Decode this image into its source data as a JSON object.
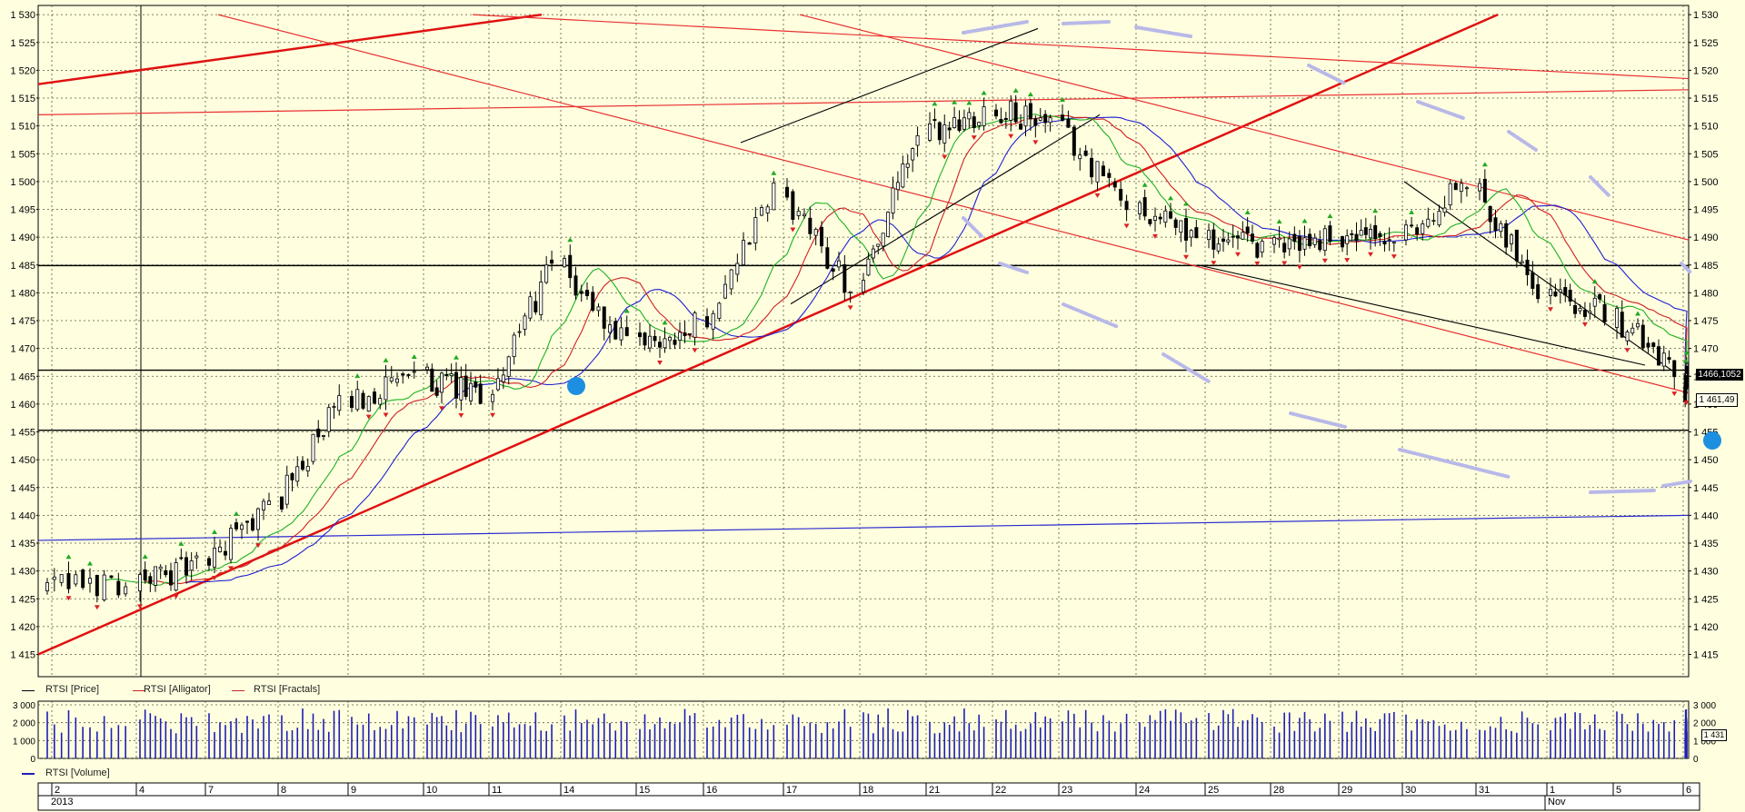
{
  "colors": {
    "background": "#ffffe0",
    "panel": "#fffff0",
    "grid": "#5a5a3a",
    "candle": "#000000",
    "alligator_jaw": "#2020d0",
    "alligator_teeth": "#d02020",
    "alligator_lips": "#20b020",
    "fractal_up": "#22aa22",
    "fractal_down": "#dd2020",
    "trend_thick": "#e01010",
    "trend_thin": "#e83030",
    "volume": "#1e1eb4",
    "sma": "#2a2ad0"
  },
  "legend_price": [
    {
      "label": "RTSI [Price]",
      "color": "#000000"
    },
    {
      "label": "RTSI [Alligator]",
      "color": "#d02020"
    },
    {
      "label": "RTSI [Fractals]",
      "color": "#d02020"
    }
  ],
  "legend_volume": [
    {
      "label": "RTSI [Volume]",
      "color": "#1e1eb4"
    }
  ],
  "price_badges": {
    "upper": "1466,1052",
    "lower": "1 461,49"
  },
  "volume_badge": "1 431",
  "timeline": {
    "day_labels": [
      "2",
      "4",
      "7",
      "8",
      "9",
      "10",
      "11",
      "14",
      "15",
      "16",
      "17",
      "18",
      "21",
      "22",
      "23",
      "24",
      "25",
      "28",
      "29",
      "30",
      "31",
      "1",
      "5",
      "6"
    ],
    "year_label": "2013",
    "month_label": "Nov"
  },
  "chart_data": [
    {
      "type": "candlestick",
      "title": "",
      "series_name": "RTSI",
      "y_axis_ticks": [
        "1 530",
        "1 525",
        "1 520",
        "1 515",
        "1 510",
        "1 505",
        "1 500",
        "1 495",
        "1 490",
        "1 485",
        "1 480",
        "1 475",
        "1 470",
        "1 465",
        "1 460",
        "1 455",
        "1 450",
        "1 445",
        "1 440",
        "1 435",
        "1 430",
        "1 425",
        "1 420",
        "1 415"
      ],
      "ylim": [
        1411,
        1531
      ],
      "x_day_labels": [
        "2",
        "4",
        "7",
        "8",
        "9",
        "10",
        "11",
        "14",
        "15",
        "16",
        "17",
        "18",
        "21",
        "22",
        "23",
        "24",
        "25",
        "28",
        "29",
        "30",
        "31",
        "1",
        "5",
        "6"
      ],
      "y_close_by_session": [
        1428,
        1431,
        1442,
        1460,
        1465,
        1461,
        1485,
        1470,
        1474,
        1498,
        1481,
        1508,
        1513,
        1510,
        1496,
        1490,
        1488,
        1490,
        1489,
        1500,
        1481,
        1476,
        1467,
        1461.49
      ],
      "last_close": 1461.49,
      "horizontal_levels": [
        1484.9,
        1466.1,
        1455.3
      ],
      "grid": true
    },
    {
      "type": "bar",
      "title": "",
      "series_name": "RTSI [Volume]",
      "y_axis_ticks": [
        "3 000",
        "2 000",
        "1 000",
        "0"
      ],
      "ylim": [
        0,
        3000
      ],
      "last_value": 1431,
      "grid": true
    }
  ]
}
